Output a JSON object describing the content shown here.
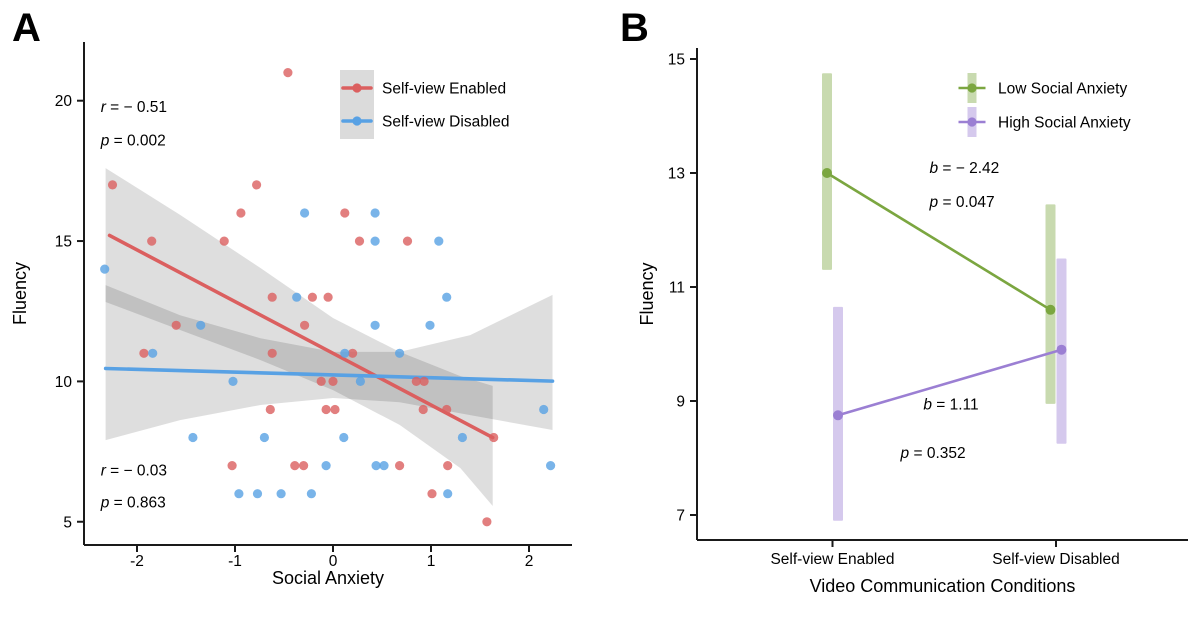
{
  "figure": {
    "panels": [
      {
        "label": "A"
      },
      {
        "label": "B"
      }
    ],
    "background": "#ffffff"
  },
  "colors": {
    "enabled_red": "#DB5F5F",
    "disabled_blue": "#58A1E4",
    "low_green": "#7BA640",
    "high_purple": "#9B7FD3",
    "ci_band": "#000000",
    "legend_box_gray": "#DBDBDB",
    "axis": "#1a1a1a"
  },
  "chart_data": [
    {
      "id": "panel_a",
      "type": "scatter",
      "panel_label": "A",
      "xlabel": "Social Anxiety",
      "ylabel": "Fluency",
      "xlim": [
        -2.54,
        2.44
      ],
      "ylim": [
        4.6,
        22.0
      ],
      "xticks": [
        -2,
        -1,
        0,
        1,
        2
      ],
      "yticks": [
        5,
        10,
        15,
        20
      ],
      "grid": false,
      "legend_position": "top-right-inside",
      "legend": [
        {
          "label": "Self-view Enabled",
          "color": "#DB5F5F"
        },
        {
          "label": "Self-view Disabled",
          "color": "#58A1E4"
        }
      ],
      "annotations": [
        {
          "sym": "r",
          "rest": " = − 0.51",
          "x": -2.37,
          "y": 19.6,
          "anchor": "start"
        },
        {
          "sym": "p",
          "rest": " = 0.002",
          "x": -2.37,
          "y": 18.4,
          "anchor": "start"
        },
        {
          "sym": "r",
          "rest": " = − 0.03",
          "x": -2.37,
          "y": 6.65,
          "anchor": "start"
        },
        {
          "sym": "p",
          "rest": " = 0.863",
          "x": -2.37,
          "y": 5.5,
          "anchor": "start"
        }
      ],
      "series": [
        {
          "name": "Self-view Enabled",
          "color": "#DB5F5F",
          "stats": {
            "r": -0.51,
            "p": 0.002
          },
          "points": [
            [
              -2.25,
              17
            ],
            [
              -0.46,
              21
            ],
            [
              -0.78,
              17
            ],
            [
              -0.94,
              16
            ],
            [
              0.12,
              16
            ],
            [
              -1.85,
              15
            ],
            [
              -1.11,
              15
            ],
            [
              0.27,
              15
            ],
            [
              0.76,
              15
            ],
            [
              -0.62,
              13
            ],
            [
              -0.21,
              13
            ],
            [
              -0.05,
              13
            ],
            [
              -1.6,
              12
            ],
            [
              -0.29,
              12
            ],
            [
              -1.93,
              11
            ],
            [
              -0.62,
              11
            ],
            [
              0.2,
              11
            ],
            [
              -0.12,
              10
            ],
            [
              0,
              10
            ],
            [
              0.85,
              10
            ],
            [
              0.93,
              10
            ],
            [
              -0.64,
              9
            ],
            [
              -0.07,
              9
            ],
            [
              0.02,
              9
            ],
            [
              0.92,
              9
            ],
            [
              1.16,
              9
            ],
            [
              1.64,
              8
            ],
            [
              -1.03,
              7
            ],
            [
              -0.39,
              7
            ],
            [
              -0.3,
              7
            ],
            [
              0.68,
              7
            ],
            [
              1.17,
              7
            ],
            [
              1.01,
              6
            ],
            [
              1.57,
              5
            ]
          ],
          "trend": [
            [
              -2.28,
              15.2
            ],
            [
              1.63,
              8.0
            ]
          ],
          "ci_upper": [
            [
              -2.32,
              17.6
            ],
            [
              -1.56,
              15.93
            ],
            [
              -0.74,
              14.04
            ],
            [
              0,
              12.26
            ],
            [
              0.68,
              11.05
            ],
            [
              1.3,
              10.19
            ],
            [
              1.63,
              9.84
            ]
          ],
          "ci_lower": [
            [
              -2.32,
              12.83
            ],
            [
              -1.56,
              11.83
            ],
            [
              -0.74,
              10.76
            ],
            [
              0,
              9.69
            ],
            [
              0.68,
              8.45
            ],
            [
              1.3,
              6.91
            ],
            [
              1.63,
              5.56
            ]
          ]
        },
        {
          "name": "Self-view Disabled",
          "color": "#58A1E4",
          "stats": {
            "r": -0.03,
            "p": 0.863
          },
          "points": [
            [
              -2.33,
              14
            ],
            [
              -0.29,
              16
            ],
            [
              0.43,
              16
            ],
            [
              0.43,
              15
            ],
            [
              1.08,
              15
            ],
            [
              -0.37,
              13
            ],
            [
              1.16,
              13
            ],
            [
              -1.35,
              12
            ],
            [
              0.43,
              12
            ],
            [
              0.99,
              12
            ],
            [
              -1.84,
              11
            ],
            [
              0.12,
              11
            ],
            [
              0.68,
              11
            ],
            [
              -1.02,
              10
            ],
            [
              0.28,
              10
            ],
            [
              2.15,
              9
            ],
            [
              -1.43,
              8
            ],
            [
              -0.7,
              8
            ],
            [
              0.11,
              8
            ],
            [
              1.32,
              8
            ],
            [
              -0.07,
              7
            ],
            [
              0.44,
              7
            ],
            [
              0.52,
              7
            ],
            [
              2.22,
              7
            ],
            [
              -0.96,
              6
            ],
            [
              -0.77,
              6
            ],
            [
              -0.53,
              6
            ],
            [
              -0.22,
              6
            ],
            [
              1.17,
              6
            ]
          ],
          "trend": [
            [
              -2.32,
              10.46
            ],
            [
              2.24,
              10.01
            ]
          ],
          "ci_upper": [
            [
              -2.32,
              13.43
            ],
            [
              -1.56,
              12.36
            ],
            [
              -0.74,
              11.54
            ],
            [
              0,
              11.05
            ],
            [
              0.68,
              11.05
            ],
            [
              1.4,
              11.65
            ],
            [
              2.24,
              13.08
            ]
          ],
          "ci_lower": [
            [
              -2.32,
              7.91
            ],
            [
              -1.56,
              8.62
            ],
            [
              -0.74,
              9.16
            ],
            [
              0,
              9.41
            ],
            [
              0.68,
              9.26
            ],
            [
              1.4,
              8.8
            ],
            [
              2.24,
              8.27
            ]
          ]
        }
      ]
    },
    {
      "id": "panel_b",
      "type": "line",
      "panel_label": "B",
      "xlabel": "Video Communication Conditions",
      "ylabel": "Fluency",
      "categories": [
        "Self-view Enabled",
        "Self-view Disabled"
      ],
      "ylim": [
        6.3,
        15.3
      ],
      "yticks": [
        7,
        9,
        11,
        13,
        15
      ],
      "grid": false,
      "legend_position": "top-right-inside",
      "legend": [
        {
          "label": "Low Social Anxiety",
          "color": "#7BA640"
        },
        {
          "label": "High Social Anxiety",
          "color": "#9B7FD3"
        }
      ],
      "annotations": [
        {
          "sym": "b",
          "rest": " = − 2.42",
          "x": 1.59,
          "y": 13.0,
          "anchor": "middle"
        },
        {
          "sym": "p",
          "rest": " = 0.047",
          "x": 1.58,
          "y": 12.4,
          "anchor": "middle"
        },
        {
          "sym": "b",
          "rest": " = 1.11",
          "x": 1.53,
          "y": 8.85,
          "anchor": "middle"
        },
        {
          "sym": "p",
          "rest": " = 0.352",
          "x": 1.45,
          "y": 8.0,
          "anchor": "middle"
        }
      ],
      "series": [
        {
          "name": "Low Social Anxiety",
          "color": "#7BA640",
          "means": [
            13.0,
            10.6
          ],
          "ci": [
            [
              11.3,
              14.75
            ],
            [
              8.95,
              12.45
            ]
          ],
          "stats": {
            "b": -2.42,
            "p": 0.047
          }
        },
        {
          "name": "High Social Anxiety",
          "color": "#9B7FD3",
          "means": [
            8.75,
            9.9
          ],
          "ci": [
            [
              6.9,
              10.65
            ],
            [
              8.25,
              11.5
            ]
          ],
          "stats": {
            "b": 1.11,
            "p": 0.352
          }
        }
      ]
    }
  ]
}
